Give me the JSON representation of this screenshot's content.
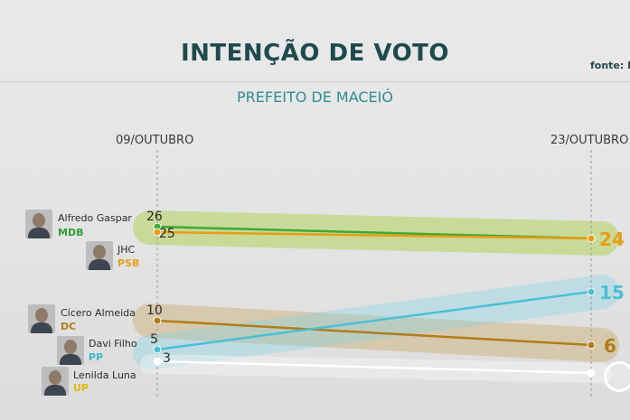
{
  "header": {
    "title": "INTENÇÃO DE VOTO",
    "source": "fonte: Il",
    "subtitle": "PREFEITO DE MACEIÓ"
  },
  "colors": {
    "title": "#1f4a4d",
    "subtitle": "#2e8c92",
    "mdb": "#3aaa35",
    "psb": "#e69d16",
    "dc": "#b07d1a",
    "pp": "#4bbfd6",
    "up": "#ffffff"
  },
  "candidates": [
    {
      "name": "Alfredo Gaspar",
      "party": "MDB",
      "party_color": "#2f9e33"
    },
    {
      "name": "JHC",
      "party": "PSB",
      "party_color": "#e8a21c"
    },
    {
      "name": "Cícero Almeida",
      "party": "DC",
      "party_color": "#b07d1a"
    },
    {
      "name": "Davi Filho",
      "party": "PP",
      "party_color": "#3fb7cf"
    },
    {
      "name": "Lenilda Luna",
      "party": "UP",
      "party_color": "#e0b800"
    }
  ],
  "chart_data": {
    "type": "line",
    "title": "INTENÇÃO DE VOTO",
    "subtitle": "PREFEITO DE MACEIÓ",
    "x": [
      "09/OUTUBRO",
      "23/OUTUBRO"
    ],
    "series": [
      {
        "name": "Alfredo Gaspar",
        "values": [
          26,
          null
        ],
        "color": "#3aaa35"
      },
      {
        "name": "JHC",
        "values": [
          25,
          24
        ],
        "color": "#e69d16"
      },
      {
        "name": "Cícero Almeida",
        "values": [
          10,
          6
        ],
        "color": "#b07d1a"
      },
      {
        "name": "Davi Filho",
        "values": [
          5,
          15
        ],
        "color": "#4bbfd6"
      },
      {
        "name": "Lenilda Luna",
        "values": [
          3,
          null
        ],
        "color": "#ffffff"
      }
    ],
    "labels": [
      {
        "series": "Alfredo Gaspar",
        "text": "26"
      },
      {
        "series": "JHC",
        "text": "25"
      },
      {
        "series": "JHC",
        "text": "24"
      },
      {
        "series": "Cícero Almeida",
        "text": "10"
      },
      {
        "series": "Cícero Almeida",
        "text": "6"
      },
      {
        "series": "Davi Filho",
        "text": "5"
      },
      {
        "series": "Davi Filho",
        "text": "15"
      },
      {
        "series": "Lenilda Luna",
        "text": "3"
      }
    ],
    "grid": false
  }
}
